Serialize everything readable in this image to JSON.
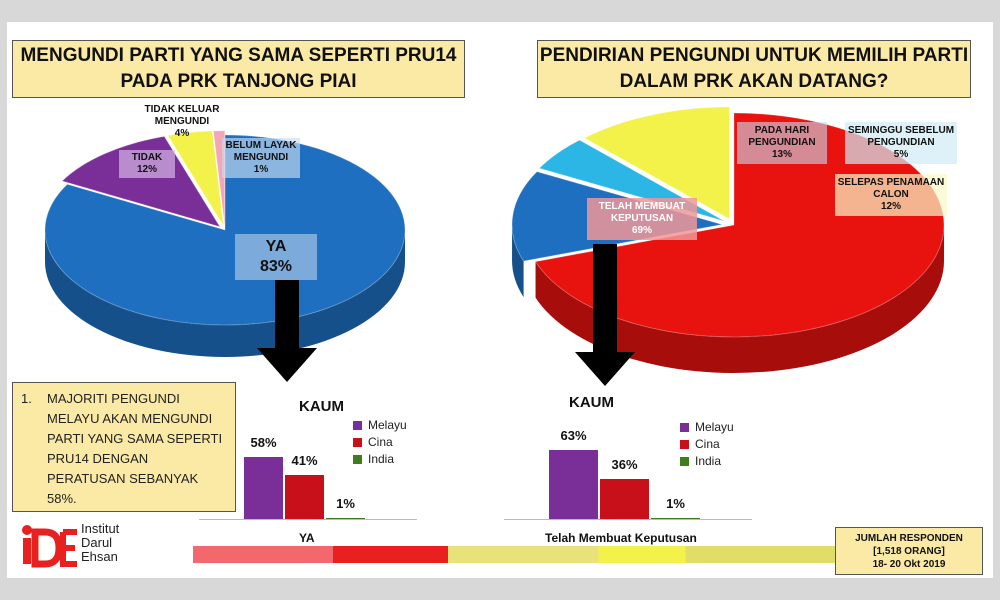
{
  "left_title": {
    "line1": "MENGUNDI PARTI YANG SAMA SEPERTI PRU14",
    "line2": "PADA PRK TANJONG PIAI"
  },
  "right_title": {
    "line1": "PENDIRIAN PENGUNDI UNTUK MEMILIH PARTI",
    "line2": "DALAM PRK AKAN DATANG?"
  },
  "finding": {
    "number": "1.",
    "lines": [
      "MAJORITI PENGUNDI",
      "MELAYU AKAN MENGUNDI",
      "PARTI YANG SAMA SEPERTI",
      "PRU14 DENGAN",
      "PERATUSAN SEBANYAK",
      "58%."
    ]
  },
  "logo": {
    "mark": "iDE",
    "lines": [
      "Institut",
      "Darul",
      "Ehsan"
    ]
  },
  "responden": {
    "line1": "JUMLAH RESPONDEN",
    "line2": "[1,518 ORANG]",
    "line3": "18- 20 Okt 2019"
  },
  "colors": {
    "blue": "#1f6fc0",
    "purple": "#7a2f98",
    "yellow": "#f2f24a",
    "pink": "#f4a6b4",
    "red": "#e8120f",
    "cyan": "#2bb6e6",
    "green": "#3f7d1c",
    "title_bg": "#fbe9a6"
  },
  "chart_data": [
    {
      "type": "pie",
      "title": "MENGUNDI PARTI YANG SAMA SEPERTI PRU14 PADA PRK TANJONG PIAI",
      "slices": [
        {
          "name": "YA",
          "value": 83,
          "label": "83%",
          "color": "#1f6fc0"
        },
        {
          "name": "TIDAK",
          "value": 12,
          "label": "12%",
          "color": "#7a2f98"
        },
        {
          "name": "TIDAK KELUAR MENGUNDI",
          "value": 4,
          "label": "4%",
          "color": "#f2f24a"
        },
        {
          "name": "BELUM LAYAK MENGUNDI",
          "value": 1,
          "label": "1%",
          "color": "#f4a6b4"
        }
      ]
    },
    {
      "type": "pie",
      "title": "PENDIRIAN PENGUNDI UNTUK MEMILIH PARTI DALAM PRK AKAN DATANG?",
      "slices": [
        {
          "name": "TELAH MEMBUAT KEPUTUSAN",
          "value": 69,
          "label": "69%",
          "color": "#e8120f"
        },
        {
          "name": "PADA HARI PENGUNDIAN",
          "value": 13,
          "label": "13%",
          "color": "#1f6fc0"
        },
        {
          "name": "SEMINGGU SEBELUM PENGUNDIAN",
          "value": 5,
          "label": "5%",
          "color": "#2bb6e6"
        },
        {
          "name": "SELEPAS PENAMAAN CALON",
          "value": 12,
          "label": "12%",
          "color": "#f2f24a"
        }
      ]
    },
    {
      "type": "bar",
      "title": "KAUM",
      "xlabel": "YA",
      "categories": [
        "Melayu",
        "Cina",
        "India"
      ],
      "values": [
        58,
        41,
        1
      ],
      "labels": [
        "58%",
        "41%",
        "1%"
      ],
      "colors": [
        "#7a2f98",
        "#c8101a",
        "#3f7d1c"
      ],
      "legend": [
        "Melayu",
        "Cina",
        "India"
      ],
      "ylim": [
        0,
        100
      ]
    },
    {
      "type": "bar",
      "title": "KAUM",
      "xlabel": "Telah Membuat Keputusan",
      "categories": [
        "Melayu",
        "Cina",
        "India"
      ],
      "values": [
        63,
        36,
        1
      ],
      "labels": [
        "63%",
        "36%",
        "1%"
      ],
      "colors": [
        "#7a2f98",
        "#c8101a",
        "#3f7d1c"
      ],
      "legend": [
        "Melayu",
        "Cina",
        "India"
      ],
      "ylim": [
        0,
        100
      ]
    }
  ]
}
